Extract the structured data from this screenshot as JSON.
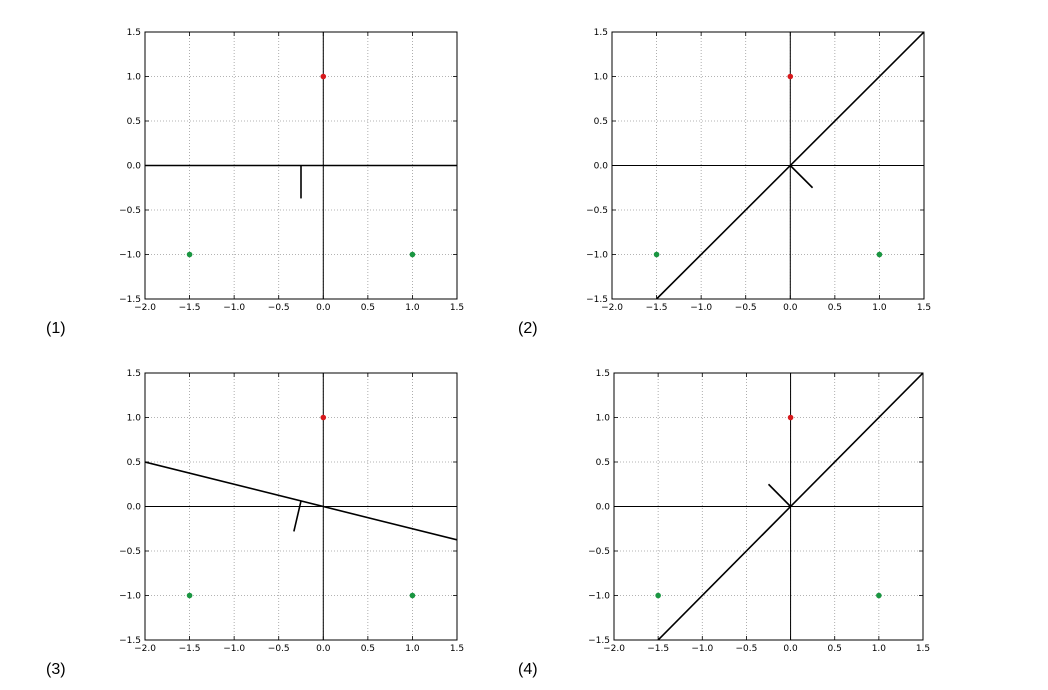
{
  "chart_data": [
    {
      "type": "scatter",
      "label": "(1)",
      "xlim": [
        -2.0,
        1.5
      ],
      "ylim": [
        -1.5,
        1.5
      ],
      "xticks": [
        "−2.0",
        "−1.5",
        "−1.0",
        "−0.5",
        "0.0",
        "0.5",
        "1.0",
        "1.5"
      ],
      "yticks": [
        "−1.5",
        "−1.0",
        "−0.5",
        "0.0",
        "0.5",
        "1.0",
        "1.5"
      ],
      "xtick_values": [
        -2.0,
        -1.5,
        -1.0,
        -0.5,
        0.0,
        0.5,
        1.0,
        1.5
      ],
      "ytick_values": [
        -1.5,
        -1.0,
        -0.5,
        0.0,
        0.5,
        1.0,
        1.5
      ],
      "grid": true,
      "points": [
        {
          "x": 0.0,
          "y": 1.0,
          "color": "#d7191c"
        },
        {
          "x": -1.5,
          "y": -1.0,
          "color": "#1a9641"
        },
        {
          "x": 1.0,
          "y": -1.0,
          "color": "#1a9641"
        }
      ],
      "decision_line": [
        [
          -2.0,
          0.0
        ],
        [
          1.5,
          0.0
        ]
      ],
      "normal_segment": [
        [
          -0.25,
          0.0
        ],
        [
          -0.25,
          -0.37
        ]
      ]
    },
    {
      "type": "scatter",
      "label": "(2)",
      "xlim": [
        -2.0,
        1.5
      ],
      "ylim": [
        -1.5,
        1.5
      ],
      "xticks": [
        "−2.0",
        "−1.5",
        "−1.0",
        "−0.5",
        "0.0",
        "0.5",
        "1.0",
        "1.5"
      ],
      "yticks": [
        "−1.5",
        "−1.0",
        "−0.5",
        "0.0",
        "0.5",
        "1.0",
        "1.5"
      ],
      "xtick_values": [
        -2.0,
        -1.5,
        -1.0,
        -0.5,
        0.0,
        0.5,
        1.0,
        1.5
      ],
      "ytick_values": [
        -1.5,
        -1.0,
        -0.5,
        0.0,
        0.5,
        1.0,
        1.5
      ],
      "grid": true,
      "points": [
        {
          "x": 0.0,
          "y": 1.0,
          "color": "#d7191c"
        },
        {
          "x": -1.5,
          "y": -1.0,
          "color": "#1a9641"
        },
        {
          "x": 1.0,
          "y": -1.0,
          "color": "#1a9641"
        }
      ],
      "decision_line": [
        [
          -1.5,
          -1.5
        ],
        [
          1.5,
          1.5
        ]
      ],
      "normal_segment": [
        [
          0.0,
          0.0
        ],
        [
          0.25,
          -0.25
        ]
      ]
    },
    {
      "type": "scatter",
      "label": "(3)",
      "xlim": [
        -2.0,
        1.5
      ],
      "ylim": [
        -1.5,
        1.5
      ],
      "xticks": [
        "−2.0",
        "−1.5",
        "−1.0",
        "−0.5",
        "0.0",
        "0.5",
        "1.0",
        "1.5"
      ],
      "yticks": [
        "−1.5",
        "−1.0",
        "−0.5",
        "0.0",
        "0.5",
        "1.0",
        "1.5"
      ],
      "xtick_values": [
        -2.0,
        -1.5,
        -1.0,
        -0.5,
        0.0,
        0.5,
        1.0,
        1.5
      ],
      "ytick_values": [
        -1.5,
        -1.0,
        -0.5,
        0.0,
        0.5,
        1.0,
        1.5
      ],
      "grid": true,
      "points": [
        {
          "x": 0.0,
          "y": 1.0,
          "color": "#d7191c"
        },
        {
          "x": -1.5,
          "y": -1.0,
          "color": "#1a9641"
        },
        {
          "x": 1.0,
          "y": -1.0,
          "color": "#1a9641"
        }
      ],
      "decision_line": [
        [
          -2.0,
          0.5
        ],
        [
          1.5,
          -0.375
        ]
      ],
      "normal_segment": [
        [
          -0.25,
          0.0625
        ],
        [
          -0.33,
          -0.28
        ]
      ]
    },
    {
      "type": "scatter",
      "label": "(4)",
      "xlim": [
        -2.0,
        1.5
      ],
      "ylim": [
        -1.5,
        1.5
      ],
      "xticks": [
        "−2.0",
        "−1.5",
        "−1.0",
        "−0.5",
        "0.0",
        "0.5",
        "1.0",
        "1.5"
      ],
      "yticks": [
        "−1.5",
        "−1.0",
        "−0.5",
        "0.0",
        "0.5",
        "1.0",
        "1.5"
      ],
      "xtick_values": [
        -2.0,
        -1.5,
        -1.0,
        -0.5,
        0.0,
        0.5,
        1.0,
        1.5
      ],
      "ytick_values": [
        -1.5,
        -1.0,
        -0.5,
        0.0,
        0.5,
        1.0,
        1.5
      ],
      "grid": true,
      "points": [
        {
          "x": 0.0,
          "y": 1.0,
          "color": "#d7191c"
        },
        {
          "x": -1.5,
          "y": -1.0,
          "color": "#1a9641"
        },
        {
          "x": 1.0,
          "y": -1.0,
          "color": "#1a9641"
        }
      ],
      "decision_line": [
        [
          -1.5,
          -1.5
        ],
        [
          1.5,
          1.5
        ]
      ],
      "normal_segment": [
        [
          0.0,
          0.0
        ],
        [
          -0.25,
          0.25
        ]
      ]
    }
  ]
}
